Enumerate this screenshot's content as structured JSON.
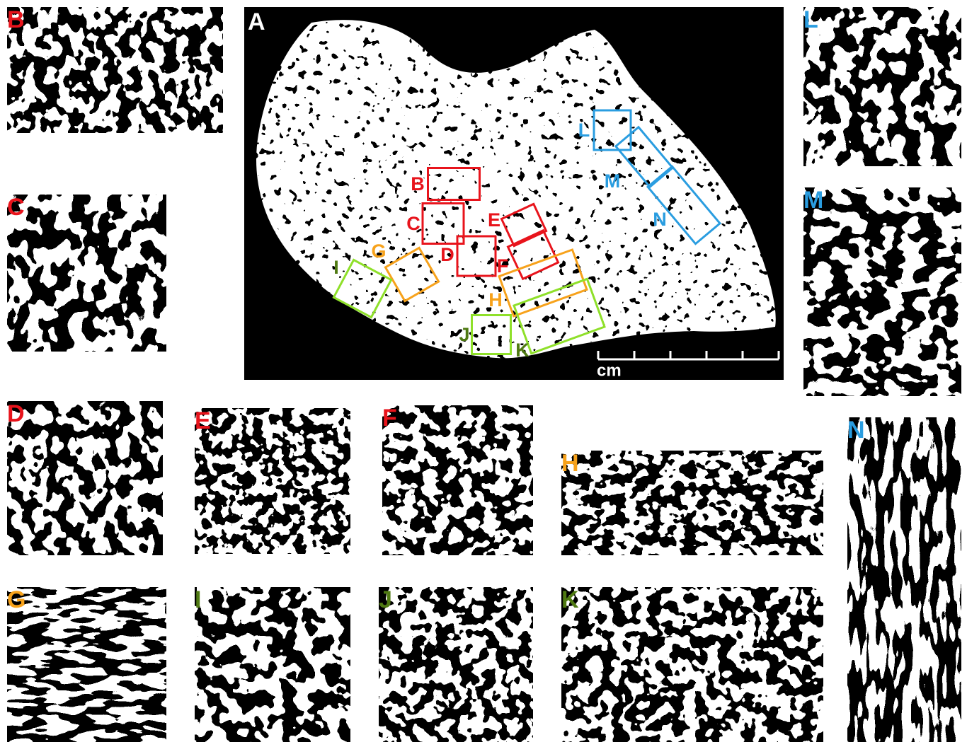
{
  "panels": [
    {
      "label": "A",
      "color": "#ffffff"
    },
    {
      "label": "B",
      "color": "#e8141c"
    },
    {
      "label": "C",
      "color": "#e8141c"
    },
    {
      "label": "D",
      "color": "#e8141c"
    },
    {
      "label": "E",
      "color": "#e8141c"
    },
    {
      "label": "F",
      "color": "#e8141c"
    },
    {
      "label": "G",
      "color": "#f7a21b"
    },
    {
      "label": "H",
      "color": "#f7a21b"
    },
    {
      "label": "I",
      "color": "#4f7a12"
    },
    {
      "label": "J",
      "color": "#4f7a12"
    },
    {
      "label": "K",
      "color": "#4f7a12"
    },
    {
      "label": "L",
      "color": "#2a9de0"
    },
    {
      "label": "M",
      "color": "#2a9de0"
    },
    {
      "label": "N",
      "color": "#2a9de0"
    }
  ],
  "regions": [
    {
      "label": "B",
      "color": "#e8141c",
      "box": "#e8141c"
    },
    {
      "label": "C",
      "color": "#e8141c",
      "box": "#e8141c"
    },
    {
      "label": "D",
      "color": "#e8141c",
      "box": "#e8141c"
    },
    {
      "label": "E",
      "color": "#e8141c",
      "box": "#e8141c"
    },
    {
      "label": "F",
      "color": "#e8141c",
      "box": "#e8141c"
    },
    {
      "label": "G",
      "color": "#f7a21b",
      "box": "#f7a21b"
    },
    {
      "label": "H",
      "color": "#f7a21b",
      "box": "#f7a21b"
    },
    {
      "label": "I",
      "color": "#4f7a12",
      "box": "#8fe02a"
    },
    {
      "label": "J",
      "color": "#4f7a12",
      "box": "#8fe02a"
    },
    {
      "label": "K",
      "color": "#4f7a12",
      "box": "#8fe02a"
    },
    {
      "label": "L",
      "color": "#2a9de0",
      "box": "#2a9de0"
    },
    {
      "label": "M",
      "color": "#2a9de0",
      "box": "#2a9de0"
    },
    {
      "label": "N",
      "color": "#2a9de0",
      "box": "#2a9de0"
    }
  ],
  "scale_bar": {
    "unit": "cm"
  }
}
